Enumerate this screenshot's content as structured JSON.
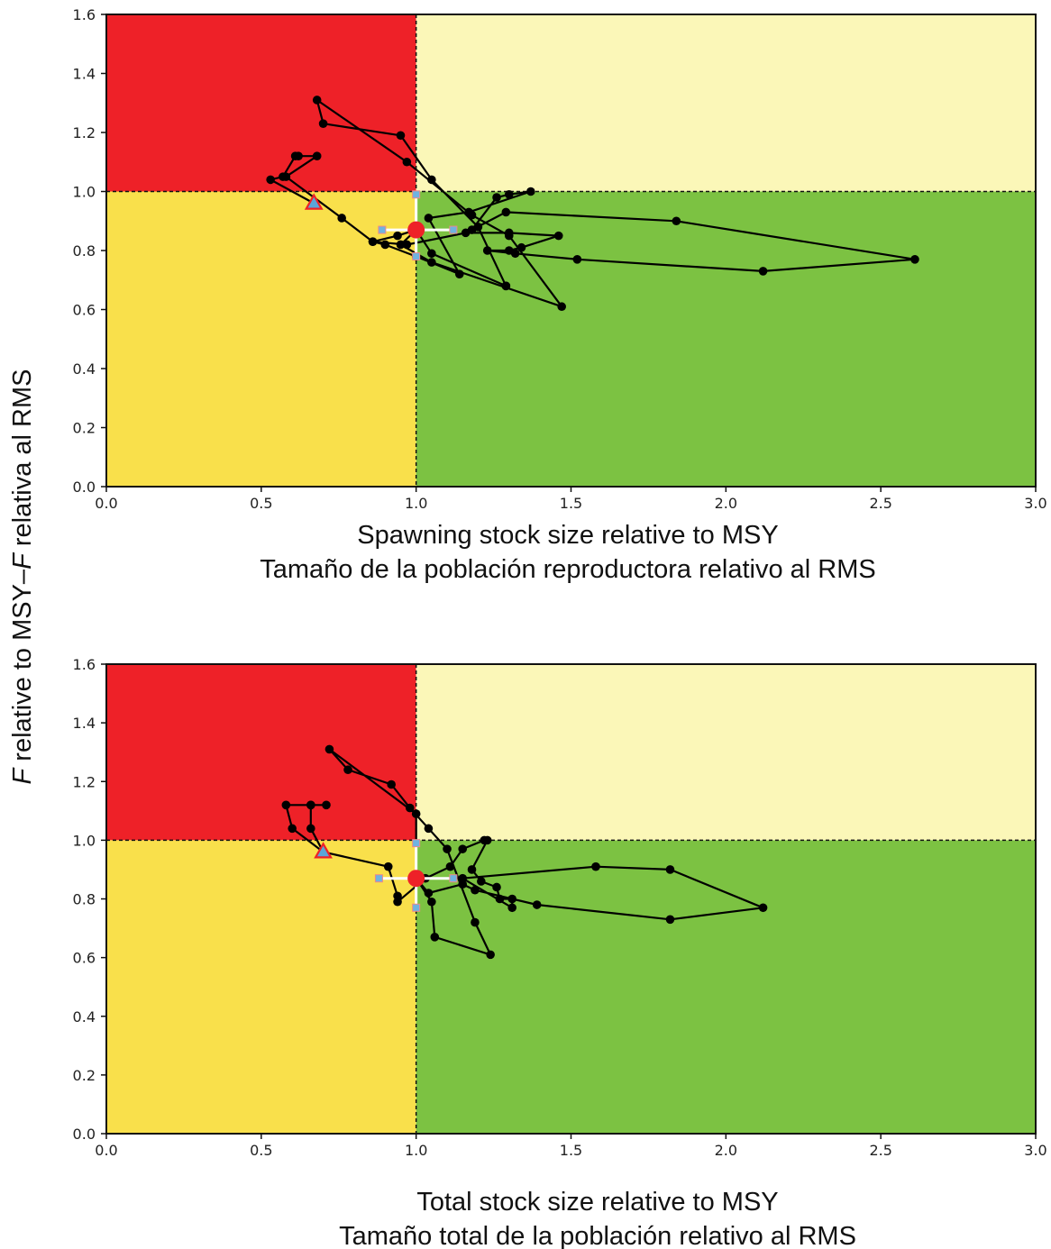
{
  "figure": {
    "ylabel_italic_1": "F",
    "ylabel_text_1": " relative to MSY–",
    "ylabel_italic_2": "F",
    "ylabel_text_2": " relativa al RMS"
  },
  "colors": {
    "red_zone": "#ee2128",
    "light_yellow_zone": "#fbf7b8",
    "yellow_zone": "#f9e04b",
    "green_zone": "#7cc242",
    "trajectory": "#000000",
    "current_point": "#ee2128",
    "first_point_fill": "#5aa6d8",
    "first_point_edge": "#ee2128",
    "ci_marker": "#6fb3e0"
  },
  "chart_data": [
    {
      "type": "scatter",
      "xlabel_line1": "Spawning stock size relative to MSY",
      "xlabel_line2": "Tamaño de la población reproductora relativo al RMS",
      "xlim": [
        0,
        3.0
      ],
      "ylim": [
        0,
        1.6
      ],
      "xticks": [
        "0.0",
        "0.5",
        "1.0",
        "1.5",
        "2.0",
        "2.5",
        "3.0"
      ],
      "yticks": [
        "0.0",
        "0.2",
        "0.4",
        "0.6",
        "0.8",
        "1.0",
        "1.2",
        "1.4",
        "1.6"
      ],
      "reference_lines": {
        "x": 1.0,
        "y": 1.0
      },
      "trajectory": [
        [
          0.67,
          0.96
        ],
        [
          0.53,
          1.04
        ],
        [
          0.57,
          1.05
        ],
        [
          0.61,
          1.12
        ],
        [
          0.62,
          1.12
        ],
        [
          0.68,
          1.12
        ],
        [
          0.58,
          1.05
        ],
        [
          0.76,
          0.91
        ],
        [
          0.86,
          0.83
        ],
        [
          0.9,
          0.82
        ],
        [
          1.0,
          0.78
        ],
        [
          1.14,
          0.72
        ],
        [
          1.04,
          0.91
        ],
        [
          1.17,
          0.93
        ],
        [
          1.37,
          1.0
        ],
        [
          1.3,
          0.99
        ],
        [
          1.26,
          0.98
        ],
        [
          1.18,
          0.87
        ],
        [
          1.29,
          0.93
        ],
        [
          1.84,
          0.9
        ],
        [
          2.61,
          0.77
        ],
        [
          2.12,
          0.73
        ],
        [
          1.52,
          0.77
        ],
        [
          1.32,
          0.79
        ],
        [
          1.23,
          0.8
        ],
        [
          1.3,
          0.8
        ],
        [
          1.34,
          0.81
        ],
        [
          1.46,
          0.85
        ],
        [
          1.3,
          0.86
        ],
        [
          1.16,
          0.86
        ],
        [
          0.97,
          0.82
        ],
        [
          0.86,
          0.83
        ],
        [
          0.94,
          0.85
        ],
        [
          1.0,
          0.87
        ],
        [
          1.05,
          0.79
        ],
        [
          1.29,
          0.68
        ],
        [
          1.29,
          0.68
        ],
        [
          1.2,
          0.88
        ],
        [
          1.05,
          1.04
        ],
        [
          0.95,
          1.19
        ],
        [
          0.7,
          1.23
        ],
        [
          0.68,
          1.31
        ],
        [
          0.97,
          1.1
        ],
        [
          1.18,
          0.92
        ],
        [
          1.3,
          0.85
        ],
        [
          1.47,
          0.61
        ],
        [
          1.05,
          0.76
        ],
        [
          0.95,
          0.82
        ],
        [
          1.0,
          0.87
        ]
      ],
      "first_point": [
        0.67,
        0.96
      ],
      "current_point": [
        1.0,
        0.87
      ],
      "ci_x": [
        0.89,
        1.12
      ],
      "ci_y": [
        0.78,
        0.99
      ]
    },
    {
      "type": "scatter",
      "xlabel_line1": "Total stock size relative to MSY",
      "xlabel_line2": "Tamaño total de la población relativo al RMS",
      "xlim": [
        0,
        3.0
      ],
      "ylim": [
        0,
        1.6
      ],
      "xticks": [
        "0.0",
        "0.5",
        "1.0",
        "1.5",
        "2.0",
        "2.5",
        "3.0"
      ],
      "yticks": [
        "0.0",
        "0.2",
        "0.4",
        "0.6",
        "0.8",
        "1.0",
        "1.2",
        "1.4",
        "1.6"
      ],
      "reference_lines": {
        "x": 1.0,
        "y": 1.0
      },
      "trajectory": [
        [
          0.7,
          0.96
        ],
        [
          0.66,
          1.04
        ],
        [
          0.66,
          1.12
        ],
        [
          0.71,
          1.12
        ],
        [
          0.66,
          1.12
        ],
        [
          0.58,
          1.12
        ],
        [
          0.6,
          1.04
        ],
        [
          0.7,
          0.96
        ],
        [
          0.91,
          0.91
        ],
        [
          0.94,
          0.81
        ],
        [
          0.94,
          0.79
        ],
        [
          1.03,
          0.87
        ],
        [
          1.11,
          0.91
        ],
        [
          1.15,
          0.97
        ],
        [
          1.22,
          1.0
        ],
        [
          1.23,
          1.0
        ],
        [
          1.18,
          0.9
        ],
        [
          1.21,
          0.86
        ],
        [
          1.26,
          0.84
        ],
        [
          1.27,
          0.8
        ],
        [
          1.31,
          0.8
        ],
        [
          1.31,
          0.77
        ],
        [
          1.15,
          0.87
        ],
        [
          1.58,
          0.91
        ],
        [
          1.82,
          0.9
        ],
        [
          2.12,
          0.77
        ],
        [
          1.82,
          0.73
        ],
        [
          1.39,
          0.78
        ],
        [
          1.19,
          0.83
        ],
        [
          1.15,
          0.85
        ],
        [
          1.04,
          0.82
        ],
        [
          1.0,
          0.87
        ],
        [
          1.05,
          0.79
        ],
        [
          1.06,
          0.67
        ],
        [
          1.24,
          0.61
        ],
        [
          1.19,
          0.72
        ],
        [
          1.1,
          0.97
        ],
        [
          1.04,
          1.04
        ],
        [
          0.98,
          1.11
        ],
        [
          0.92,
          1.19
        ],
        [
          0.78,
          1.24
        ],
        [
          0.72,
          1.31
        ],
        [
          1.0,
          1.09
        ],
        [
          1.0,
          0.87
        ]
      ],
      "first_point": [
        0.7,
        0.96
      ],
      "current_point": [
        1.0,
        0.87
      ],
      "ci_x": [
        0.88,
        1.12
      ],
      "ci_y": [
        0.77,
        0.99
      ]
    }
  ]
}
